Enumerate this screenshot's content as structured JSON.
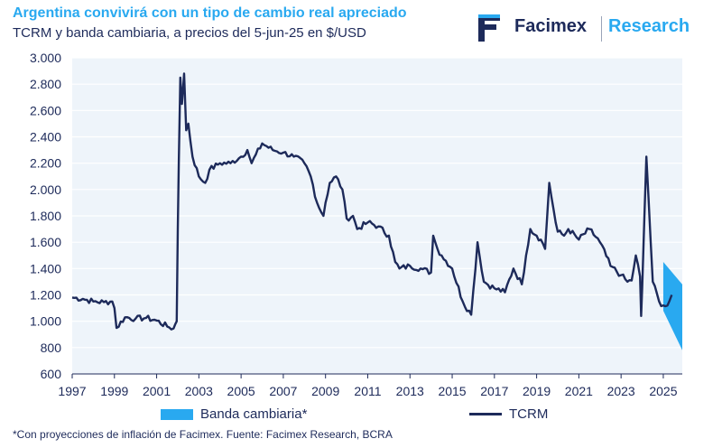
{
  "header": {
    "title": "Argentina convivirá con un tipo de cambio real apreciado",
    "subtitle": "TCRM y banda cambiaria, a precios del 5-jun-25 en $/USD"
  },
  "logo": {
    "brand": "Facimex",
    "division": "Research"
  },
  "footnote": "*Con proyecciones de inflación de Facimex. Fuente: Facimex Research, BCRA",
  "colors": {
    "tcrm": "#1d2a5a",
    "band": "#29a9f0",
    "plot_bg": "#eef4fa",
    "grid": "#ffffff"
  },
  "chart_data": {
    "type": "line",
    "x_tick_labels": [
      "1997",
      "1999",
      "2001",
      "2003",
      "2005",
      "2007",
      "2009",
      "2011",
      "2013",
      "2015",
      "2017",
      "2019",
      "2021",
      "2023",
      "2025"
    ],
    "y_tick_labels": [
      "600",
      "800",
      "1.000",
      "1.200",
      "1.400",
      "1.600",
      "1.800",
      "2.000",
      "2.200",
      "2.400",
      "2.600",
      "2.800",
      "3.000"
    ],
    "xlim": [
      1997,
      2025.9
    ],
    "ylim": [
      600,
      3000
    ],
    "grid": "horizontal",
    "legend_position": "bottom",
    "series": [
      {
        "name": "TCRM",
        "x": [
          1997,
          1997.5,
          1998,
          1998.5,
          1998.9,
          1999,
          1999.1,
          1999.5,
          2000,
          2000.5,
          2001,
          2001.5,
          2001.8,
          2001.95,
          2002.0,
          2002.05,
          2002.12,
          2002.2,
          2002.3,
          2002.4,
          2002.5,
          2002.7,
          2003,
          2003.3,
          2003.5,
          2004,
          2004.5,
          2005,
          2005.3,
          2005.5,
          2006,
          2006.5,
          2007,
          2007.5,
          2008,
          2008.3,
          2008.6,
          2008.9,
          2009,
          2009.2,
          2009.5,
          2009.8,
          2010,
          2010.3,
          2010.5,
          2011,
          2011.5,
          2012,
          2012.3,
          2012.5,
          2013,
          2013.5,
          2014,
          2014.1,
          2014.3,
          2014.5,
          2015,
          2015.5,
          2015.9,
          2016,
          2016.2,
          2016.5,
          2017,
          2017.5,
          2017.9,
          2018.3,
          2018.5,
          2018.7,
          2019,
          2019.2,
          2019.4,
          2019.6,
          2019.9,
          2020,
          2020.3,
          2020.5,
          2021,
          2021.5,
          2022,
          2022.5,
          2023,
          2023.3,
          2023.5,
          2023.7,
          2023.9,
          2023.95,
          2024,
          2024.2,
          2024.5,
          2024.8,
          2025,
          2025.2,
          2025.4
        ],
        "values": [
          1180,
          1170,
          1150,
          1145,
          1150,
          1100,
          950,
          1030,
          1020,
          1025,
          1005,
          960,
          945,
          1000,
          1700,
          2200,
          2850,
          2650,
          2880,
          2450,
          2500,
          2250,
          2100,
          2050,
          2150,
          2200,
          2200,
          2250,
          2300,
          2200,
          2350,
          2300,
          2280,
          2250,
          2200,
          2100,
          1900,
          1800,
          1900,
          2050,
          2100,
          2000,
          1780,
          1800,
          1700,
          1750,
          1720,
          1650,
          1450,
          1400,
          1420,
          1400,
          1370,
          1650,
          1550,
          1500,
          1400,
          1150,
          1050,
          1230,
          1600,
          1300,
          1250,
          1220,
          1400,
          1280,
          1500,
          1700,
          1650,
          1620,
          1550,
          2050,
          1750,
          1680,
          1650,
          1700,
          1620,
          1700,
          1600,
          1420,
          1350,
          1300,
          1310,
          1500,
          1340,
          1040,
          1260,
          2250,
          1300,
          1150,
          1120,
          1120,
          1200
        ]
      },
      {
        "name": "Banda cambiaria*",
        "x": [
          2025.0,
          2025.9
        ],
        "upper": [
          1450,
          1280
        ],
        "lower": [
          1080,
          780
        ]
      }
    ]
  }
}
